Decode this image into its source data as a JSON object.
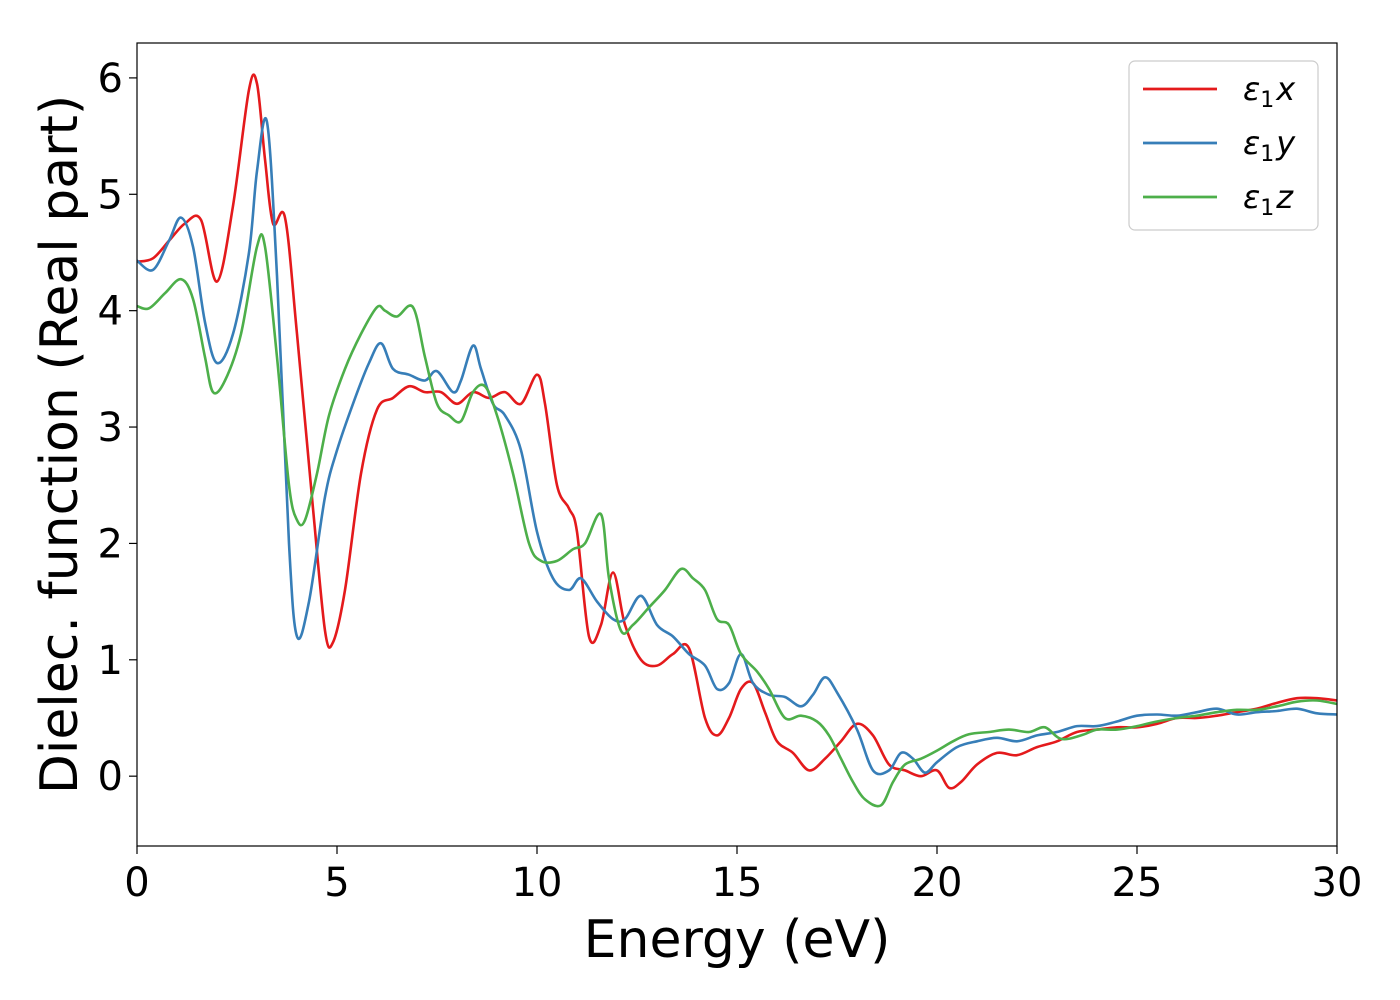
{
  "chart_data": {
    "type": "line",
    "xlabel": "Energy (eV)",
    "ylabel": "Dielec. function (Real part)",
    "xlim": [
      0,
      30
    ],
    "ylim": [
      -0.6,
      6.3
    ],
    "xticks": [
      0,
      5,
      10,
      15,
      20,
      25,
      30
    ],
    "yticks": [
      0,
      1,
      2,
      3,
      4,
      5,
      6
    ],
    "grid": false,
    "legend_position": "top-right",
    "series": [
      {
        "name": "ε1x",
        "legend": {
          "symbol": "ε",
          "sub": "1",
          "var": "x"
        },
        "color": "#e41a1c",
        "x": [
          0,
          0.4,
          0.8,
          1.2,
          1.6,
          2.0,
          2.4,
          2.8,
          3.0,
          3.2,
          3.4,
          3.7,
          4.0,
          4.4,
          4.7,
          4.9,
          5.2,
          5.6,
          6.0,
          6.4,
          6.8,
          7.2,
          7.6,
          8.0,
          8.4,
          8.8,
          9.2,
          9.6,
          10.0,
          10.2,
          10.5,
          10.8,
          11.0,
          11.3,
          11.6,
          11.9,
          12.2,
          12.6,
          13.0,
          13.4,
          13.8,
          14.2,
          14.5,
          14.8,
          15.1,
          15.4,
          15.7,
          16.0,
          16.4,
          16.8,
          17.2,
          17.6,
          18.0,
          18.4,
          18.8,
          19.2,
          19.6,
          20.0,
          20.3,
          20.6,
          21.0,
          21.5,
          22.0,
          22.5,
          23.0,
          23.5,
          24.0,
          24.5,
          25.0,
          25.5,
          26.0,
          26.5,
          27.0,
          27.5,
          28.0,
          28.5,
          29.0,
          29.5,
          30.0
        ],
        "y": [
          4.42,
          4.45,
          4.6,
          4.75,
          4.78,
          4.25,
          4.9,
          5.9,
          5.95,
          5.3,
          4.75,
          4.8,
          3.8,
          2.3,
          1.25,
          1.15,
          1.6,
          2.6,
          3.15,
          3.25,
          3.35,
          3.3,
          3.3,
          3.2,
          3.3,
          3.25,
          3.3,
          3.2,
          3.45,
          3.2,
          2.5,
          2.3,
          2.1,
          1.2,
          1.3,
          1.75,
          1.3,
          1.0,
          0.95,
          1.05,
          1.1,
          0.5,
          0.35,
          0.5,
          0.75,
          0.8,
          0.55,
          0.3,
          0.2,
          0.05,
          0.15,
          0.3,
          0.45,
          0.35,
          0.1,
          0.05,
          0.0,
          0.05,
          -0.1,
          -0.05,
          0.1,
          0.2,
          0.18,
          0.25,
          0.3,
          0.38,
          0.4,
          0.42,
          0.42,
          0.45,
          0.5,
          0.5,
          0.52,
          0.55,
          0.58,
          0.63,
          0.67,
          0.67,
          0.65
        ]
      },
      {
        "name": "ε1y",
        "legend": {
          "symbol": "ε",
          "sub": "1",
          "var": "y"
        },
        "color": "#377eb8",
        "x": [
          0,
          0.4,
          0.8,
          1.1,
          1.4,
          1.7,
          2.0,
          2.4,
          2.8,
          3.0,
          3.25,
          3.5,
          3.8,
          4.0,
          4.3,
          4.7,
          5.0,
          5.4,
          5.8,
          6.1,
          6.4,
          6.8,
          7.2,
          7.5,
          7.9,
          8.1,
          8.4,
          8.6,
          8.9,
          9.2,
          9.6,
          10.0,
          10.4,
          10.8,
          11.1,
          11.5,
          11.9,
          12.2,
          12.6,
          13.0,
          13.4,
          13.8,
          14.2,
          14.5,
          14.8,
          15.1,
          15.4,
          15.8,
          16.2,
          16.6,
          16.9,
          17.2,
          17.5,
          18.0,
          18.4,
          18.8,
          19.1,
          19.4,
          19.7,
          20.0,
          20.5,
          21.0,
          21.5,
          22.0,
          22.5,
          23.0,
          23.5,
          24.0,
          24.5,
          25.0,
          25.5,
          26.0,
          26.5,
          27.0,
          27.5,
          28.0,
          28.5,
          29.0,
          29.5,
          30.0
        ],
        "y": [
          4.43,
          4.35,
          4.6,
          4.8,
          4.55,
          3.9,
          3.55,
          3.8,
          4.5,
          5.2,
          5.62,
          4.3,
          2.0,
          1.2,
          1.5,
          2.4,
          2.8,
          3.2,
          3.55,
          3.72,
          3.5,
          3.45,
          3.4,
          3.48,
          3.3,
          3.4,
          3.7,
          3.5,
          3.2,
          3.1,
          2.8,
          2.1,
          1.7,
          1.6,
          1.7,
          1.5,
          1.35,
          1.35,
          1.55,
          1.3,
          1.2,
          1.05,
          0.95,
          0.75,
          0.8,
          1.05,
          0.8,
          0.7,
          0.68,
          0.6,
          0.7,
          0.85,
          0.72,
          0.4,
          0.05,
          0.05,
          0.2,
          0.15,
          0.03,
          0.12,
          0.25,
          0.3,
          0.33,
          0.3,
          0.35,
          0.38,
          0.43,
          0.43,
          0.47,
          0.52,
          0.53,
          0.52,
          0.55,
          0.58,
          0.53,
          0.55,
          0.56,
          0.58,
          0.54,
          0.53
        ]
      },
      {
        "name": "ε1z",
        "legend": {
          "symbol": "ε",
          "sub": "1",
          "var": "z"
        },
        "color": "#4daf4a",
        "x": [
          0,
          0.3,
          0.7,
          1.1,
          1.4,
          1.7,
          1.9,
          2.2,
          2.6,
          3.0,
          3.2,
          3.5,
          3.8,
          4.0,
          4.2,
          4.5,
          4.8,
          5.2,
          5.6,
          6.0,
          6.2,
          6.5,
          6.9,
          7.2,
          7.5,
          7.8,
          8.1,
          8.4,
          8.7,
          9.0,
          9.4,
          9.8,
          10.1,
          10.5,
          10.9,
          11.2,
          11.6,
          11.8,
          12.1,
          12.4,
          12.8,
          13.2,
          13.6,
          13.9,
          14.2,
          14.5,
          14.8,
          15.1,
          15.5,
          15.8,
          16.2,
          16.6,
          17.0,
          17.3,
          17.6,
          17.9,
          18.2,
          18.6,
          18.9,
          19.2,
          19.6,
          20.0,
          20.4,
          20.8,
          21.3,
          21.8,
          22.3,
          22.7,
          23.1,
          23.6,
          24.0,
          24.5,
          25.0,
          25.5,
          26.0,
          26.5,
          27.0,
          27.5,
          28.0,
          28.5,
          29.0,
          29.5,
          30.0
        ],
        "y": [
          4.04,
          4.02,
          4.15,
          4.27,
          4.1,
          3.6,
          3.3,
          3.4,
          3.8,
          4.55,
          4.55,
          3.6,
          2.5,
          2.2,
          2.2,
          2.6,
          3.1,
          3.5,
          3.8,
          4.03,
          4.0,
          3.95,
          4.03,
          3.6,
          3.2,
          3.1,
          3.05,
          3.3,
          3.35,
          3.1,
          2.6,
          2.0,
          1.85,
          1.85,
          1.95,
          2.0,
          2.25,
          1.7,
          1.25,
          1.3,
          1.45,
          1.6,
          1.78,
          1.7,
          1.6,
          1.35,
          1.3,
          1.05,
          0.9,
          0.75,
          0.5,
          0.52,
          0.47,
          0.35,
          0.15,
          -0.05,
          -0.2,
          -0.25,
          -0.05,
          0.1,
          0.15,
          0.22,
          0.3,
          0.36,
          0.38,
          0.4,
          0.38,
          0.42,
          0.32,
          0.35,
          0.4,
          0.4,
          0.43,
          0.47,
          0.5,
          0.52,
          0.55,
          0.57,
          0.57,
          0.6,
          0.64,
          0.65,
          0.62
        ]
      }
    ]
  }
}
